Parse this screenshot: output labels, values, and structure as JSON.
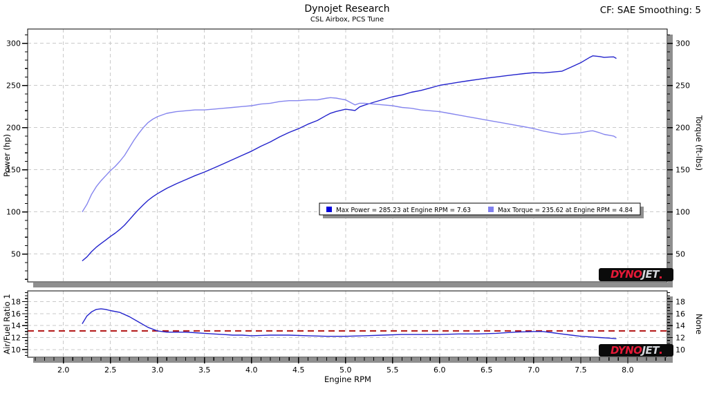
{
  "header": {
    "title": "Dynojet Research",
    "subtitle": "CSL Airbox, PCS Tune",
    "smoothing_label": "CF: SAE Smoothing: 5"
  },
  "logo": {
    "dyno": "DYNO",
    "jet": "JET"
  },
  "theme": {
    "background": "#ffffff",
    "plot_border": "#000000",
    "grid": "#c9c9c9",
    "shadow": "#8f8f8f",
    "power_color": "#2222cc",
    "torque_color": "#8585ee",
    "afr_color": "#2222cc",
    "reference_red": "#b01010",
    "legend_power_swatch": "#0000dd",
    "legend_torque_swatch": "#8080f0",
    "logo_red": "#e51937",
    "logo_silver": "#d4d7dc"
  },
  "chart_data": [
    {
      "id": "main",
      "type": "line",
      "ylabel_left": "Power (hp)",
      "ylabel_right": "Torque (ft-lbs)",
      "xlim": [
        1.62,
        8.42
      ],
      "ylim": [
        17,
        317
      ],
      "grid": true,
      "x_major": [
        2.0,
        2.5,
        3.0,
        3.5,
        4.0,
        4.5,
        5.0,
        5.5,
        6.0,
        6.5,
        7.0,
        7.5,
        8.0
      ],
      "x_minor_step": 0.1,
      "y_major": [
        50,
        100,
        150,
        200,
        250,
        300
      ],
      "y_labels": [
        "50",
        "100",
        "150",
        "200",
        "250",
        "300"
      ],
      "y_minor_step": 10,
      "legend": [
        {
          "label": "Max Power = 285.23 at Engine RPM = 7.63",
          "color": "#0000dd"
        },
        {
          "label": "Max Torque = 235.62 at Engine RPM = 4.84",
          "color": "#8080f0"
        }
      ],
      "max_power": {
        "value": 285.23,
        "rpm": 7.63
      },
      "max_torque": {
        "value": 235.62,
        "rpm": 4.84
      },
      "series": [
        {
          "name": "Power",
          "color": "#2222cc",
          "x": [
            2.2,
            2.25,
            2.3,
            2.35,
            2.4,
            2.45,
            2.5,
            2.55,
            2.6,
            2.65,
            2.7,
            2.75,
            2.8,
            2.85,
            2.9,
            2.95,
            3.0,
            3.05,
            3.1,
            3.2,
            3.3,
            3.4,
            3.5,
            3.6,
            3.7,
            3.8,
            3.9,
            4.0,
            4.1,
            4.2,
            4.3,
            4.4,
            4.5,
            4.6,
            4.7,
            4.8,
            4.84,
            4.9,
            4.95,
            5.0,
            5.05,
            5.1,
            5.15,
            5.2,
            5.3,
            5.4,
            5.5,
            5.6,
            5.7,
            5.8,
            5.9,
            6.0,
            6.1,
            6.2,
            6.3,
            6.4,
            6.5,
            6.6,
            6.7,
            6.8,
            6.9,
            7.0,
            7.1,
            7.2,
            7.3,
            7.4,
            7.5,
            7.6,
            7.63,
            7.7,
            7.75,
            7.8,
            7.85,
            7.88
          ],
          "y": [
            41.9,
            46.7,
            53.0,
            58.2,
            62.6,
            66.7,
            70.9,
            74.8,
            79.2,
            84.3,
            90.5,
            96.9,
            102.9,
            108.5,
            113.7,
            118.0,
            121.7,
            124.9,
            128.1,
            133.4,
            138.2,
            143.1,
            147.3,
            152.2,
            157.1,
            162.1,
            167.1,
            172.1,
            178.0,
            183.1,
            189.1,
            194.4,
            198.8,
            204.1,
            208.5,
            214.8,
            217.1,
            219.2,
            220.5,
            221.8,
            221.2,
            220.4,
            224.6,
            226.7,
            230.1,
            233.4,
            236.7,
            238.8,
            242.0,
            244.1,
            247.1,
            250.2,
            252.0,
            253.8,
            255.5,
            257.1,
            258.7,
            260.1,
            261.5,
            262.8,
            264.1,
            265.2,
            264.9,
            265.9,
            266.9,
            271.9,
            277.0,
            283.6,
            285.2,
            284.4,
            283.3,
            283.7,
            284.0,
            282.1
          ]
        },
        {
          "name": "Torque",
          "color": "#8585ee",
          "x": [
            2.2,
            2.25,
            2.3,
            2.35,
            2.4,
            2.45,
            2.5,
            2.55,
            2.6,
            2.65,
            2.7,
            2.75,
            2.8,
            2.85,
            2.9,
            2.95,
            3.0,
            3.05,
            3.1,
            3.2,
            3.3,
            3.4,
            3.5,
            3.6,
            3.7,
            3.8,
            3.9,
            4.0,
            4.1,
            4.2,
            4.3,
            4.4,
            4.5,
            4.6,
            4.7,
            4.8,
            4.84,
            4.9,
            4.95,
            5.0,
            5.05,
            5.1,
            5.15,
            5.2,
            5.3,
            5.4,
            5.5,
            5.6,
            5.7,
            5.8,
            5.9,
            6.0,
            6.1,
            6.2,
            6.3,
            6.4,
            6.5,
            6.6,
            6.7,
            6.8,
            6.9,
            7.0,
            7.1,
            7.2,
            7.3,
            7.4,
            7.5,
            7.6,
            7.63,
            7.7,
            7.75,
            7.8,
            7.85,
            7.88
          ],
          "y": [
            100,
            109,
            121,
            130,
            137,
            143,
            149,
            154,
            160,
            167,
            176,
            185,
            193,
            200,
            206,
            210,
            213,
            215,
            217,
            219,
            220,
            221,
            221,
            222,
            223,
            224,
            225,
            226,
            228,
            229,
            231,
            232,
            232,
            233,
            233,
            235,
            235.6,
            235,
            234,
            233,
            230,
            227,
            229,
            229,
            228,
            227,
            226,
            224,
            223,
            221,
            220,
            219,
            217,
            215,
            213,
            211,
            209,
            207,
            205,
            203,
            201,
            199,
            196,
            194,
            192,
            193,
            194,
            196,
            196.3,
            194,
            192,
            191,
            190,
            188
          ]
        }
      ]
    },
    {
      "id": "afr",
      "type": "line",
      "xlabel": "Engine RPM",
      "ylabel_left": "Air/Fuel Ratio 1",
      "ylabel_right": "None",
      "xlim": [
        1.62,
        8.42
      ],
      "ylim": [
        8.7,
        19.8
      ],
      "grid": true,
      "x_major": [
        2.0,
        2.5,
        3.0,
        3.5,
        4.0,
        4.5,
        5.0,
        5.5,
        6.0,
        6.5,
        7.0,
        7.5,
        8.0
      ],
      "x_labels": [
        "2.0",
        "2.5",
        "3.0",
        "3.5",
        "4.0",
        "4.5",
        "5.0",
        "5.5",
        "6.0",
        "6.5",
        "7.0",
        "7.5",
        "8.0"
      ],
      "x_minor_step": 0.1,
      "y_major": [
        10,
        12,
        14,
        16,
        18
      ],
      "y_labels": [
        "10",
        "12",
        "14",
        "16",
        "18"
      ],
      "y_minor_step": 0.5,
      "ref_line": {
        "value": 13.1,
        "color": "#b01010",
        "style": "dashed"
      },
      "series": [
        {
          "name": "Air/Fuel Ratio 1",
          "color": "#2222cc",
          "x": [
            2.2,
            2.25,
            2.3,
            2.35,
            2.4,
            2.45,
            2.5,
            2.6,
            2.7,
            2.8,
            2.9,
            3.0,
            3.1,
            3.2,
            3.3,
            3.4,
            3.5,
            3.6,
            3.7,
            3.8,
            3.9,
            4.0,
            4.2,
            4.4,
            4.6,
            4.8,
            5.0,
            5.2,
            5.4,
            5.6,
            5.8,
            6.0,
            6.2,
            6.4,
            6.6,
            6.8,
            7.0,
            7.1,
            7.2,
            7.3,
            7.4,
            7.5,
            7.6,
            7.7,
            7.8,
            7.88
          ],
          "y": [
            14.3,
            15.6,
            16.3,
            16.7,
            16.8,
            16.7,
            16.5,
            16.2,
            15.5,
            14.6,
            13.7,
            13.1,
            12.9,
            12.9,
            12.9,
            12.8,
            12.7,
            12.6,
            12.5,
            12.4,
            12.4,
            12.3,
            12.4,
            12.4,
            12.3,
            12.2,
            12.2,
            12.3,
            12.4,
            12.5,
            12.5,
            12.5,
            12.6,
            12.6,
            12.7,
            12.9,
            13.0,
            13.0,
            12.8,
            12.6,
            12.4,
            12.2,
            12.1,
            12.0,
            11.9,
            11.8
          ]
        }
      ]
    }
  ]
}
